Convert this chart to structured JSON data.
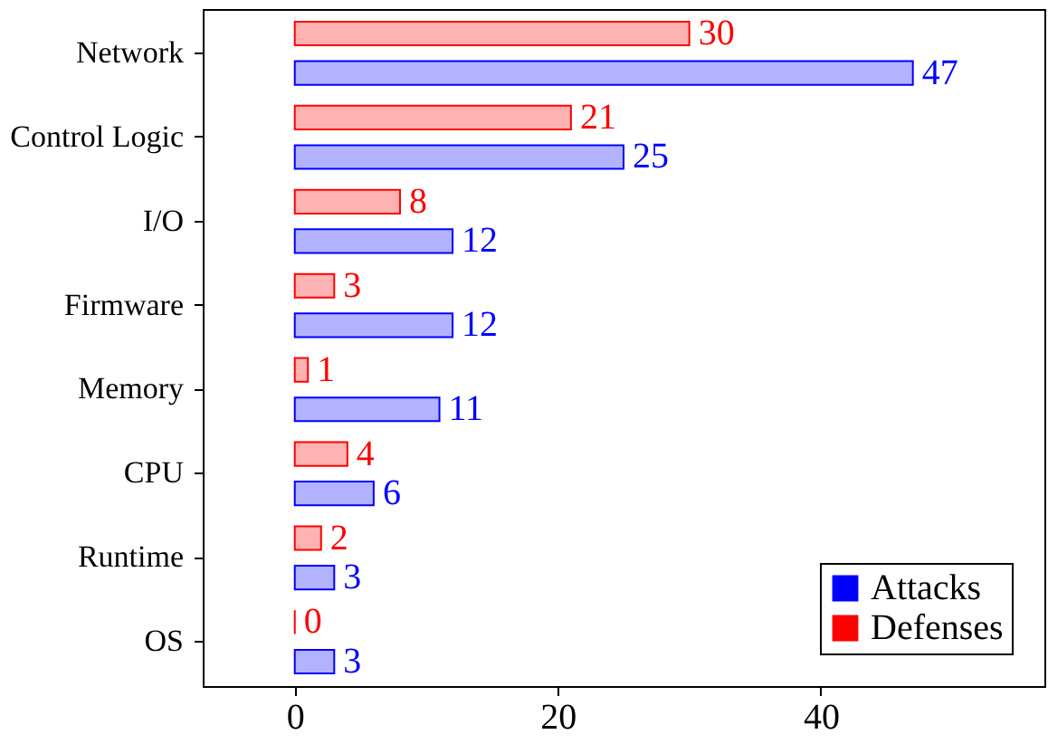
{
  "chart_data": {
    "type": "bar",
    "orientation": "horizontal",
    "categories": [
      "Network",
      "Control Logic",
      "I/O",
      "Firmware",
      "Memory",
      "CPU",
      "Runtime",
      "OS"
    ],
    "series": [
      {
        "name": "Attacks",
        "color": "#0000ff",
        "values": [
          47,
          25,
          12,
          12,
          11,
          6,
          3,
          3
        ]
      },
      {
        "name": "Defenses",
        "color": "#ff0000",
        "values": [
          30,
          21,
          8,
          3,
          1,
          4,
          2,
          0
        ]
      }
    ],
    "xlim": [
      -7,
      57
    ],
    "xticks": [
      0,
      20,
      40
    ],
    "data_labels": true,
    "legend": "bottom right",
    "grid": false
  }
}
